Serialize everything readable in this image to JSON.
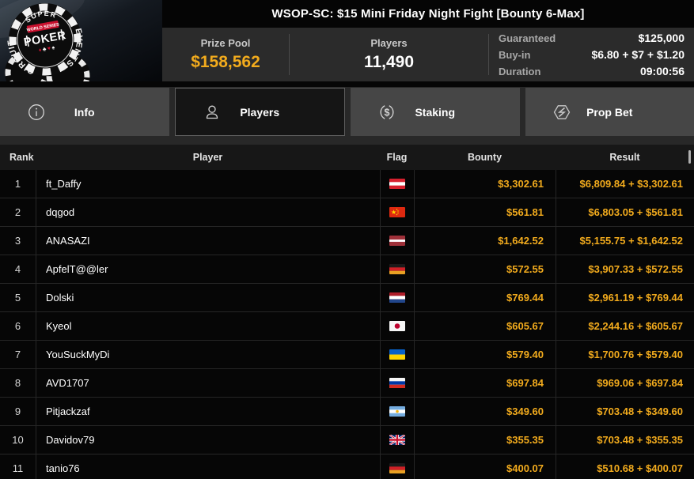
{
  "header": {
    "title": "WSOP-SC: $15 Mini Friday Night Fight [Bounty 6-Max]",
    "logo": {
      "super": "SUPER",
      "circuit": "CIRCUIT",
      "events": "EVENTS",
      "series": "WORLD SERIES",
      "poker": "POKER",
      "suits": [
        "♦",
        "♣",
        "♥",
        "♠"
      ]
    }
  },
  "stats": {
    "prize_pool_label": "Prize Pool",
    "prize_pool_value": "$158,562",
    "players_label": "Players",
    "players_value": "11,490",
    "info_rows": [
      {
        "label": "Guaranteed",
        "value": "$125,000"
      },
      {
        "label": "Buy-in",
        "value": "$6.80 + $7 + $1.20"
      },
      {
        "label": "Duration",
        "value": "09:00:56"
      }
    ]
  },
  "tabs": [
    {
      "label": "Info",
      "icon": "info-icon",
      "active": false
    },
    {
      "label": "Players",
      "icon": "user-icon",
      "active": true
    },
    {
      "label": "Staking",
      "icon": "dollar-circle-icon",
      "active": false
    },
    {
      "label": "Prop Bet",
      "icon": "hex-bolt-icon",
      "active": false
    }
  ],
  "table": {
    "columns": [
      "Rank",
      "Player",
      "Flag",
      "Bounty",
      "Result"
    ],
    "rows": [
      {
        "rank": "1",
        "player": "ft_Daffy",
        "flag": "austria",
        "bounty": "$3,302.61",
        "result": "$6,809.84 + $3,302.61"
      },
      {
        "rank": "2",
        "player": "dqgod",
        "flag": "china",
        "bounty": "$561.81",
        "result": "$6,803.05 + $561.81"
      },
      {
        "rank": "3",
        "player": "ANASAZI",
        "flag": "latvia",
        "bounty": "$1,642.52",
        "result": "$5,155.75 + $1,642.52"
      },
      {
        "rank": "4",
        "player": "ApfelT@@ler",
        "flag": "germany",
        "bounty": "$572.55",
        "result": "$3,907.33 + $572.55"
      },
      {
        "rank": "5",
        "player": "Dolski",
        "flag": "netherlands",
        "bounty": "$769.44",
        "result": "$2,961.19 + $769.44"
      },
      {
        "rank": "6",
        "player": "Kyeol",
        "flag": "japan",
        "bounty": "$605.67",
        "result": "$2,244.16 + $605.67"
      },
      {
        "rank": "7",
        "player": "YouSuckMyDi",
        "flag": "ukraine",
        "bounty": "$579.40",
        "result": "$1,700.76 + $579.40"
      },
      {
        "rank": "8",
        "player": "AVD1707",
        "flag": "russia",
        "bounty": "$697.84",
        "result": "$969.06 + $697.84"
      },
      {
        "rank": "9",
        "player": "Pitjackzaf",
        "flag": "argentina",
        "bounty": "$349.60",
        "result": "$703.48 + $349.60"
      },
      {
        "rank": "10",
        "player": "Davidov79",
        "flag": "uk",
        "bounty": "$355.35",
        "result": "$703.48 + $355.35"
      },
      {
        "rank": "11",
        "player": "tanio76",
        "flag": "germany",
        "bounty": "$400.07",
        "result": "$510.68 + $400.07"
      }
    ]
  },
  "colors": {
    "accent_gold": "#f2ab1d",
    "tab_active_bg": "#151515",
    "tab_bg": "#464646"
  }
}
